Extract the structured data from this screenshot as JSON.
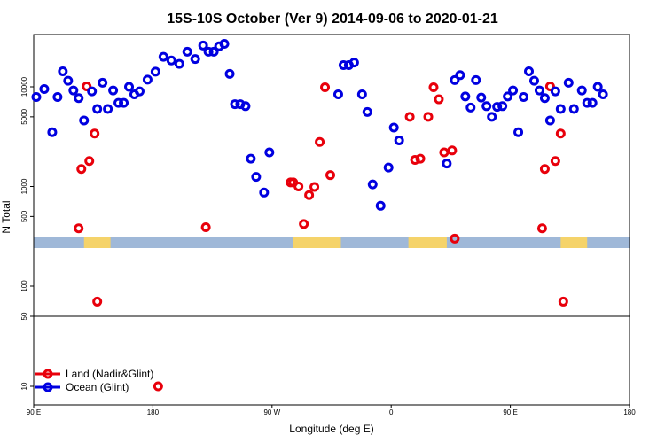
{
  "chart_data": {
    "type": "scatter",
    "title": "15S-10S October (Ver 9)   2014-09-06 to 2020-01-21",
    "xlabel": "Longitude (deg E)",
    "ylabel": "N Total",
    "x_ticks": [
      {
        "value": 90,
        "label": "90 E"
      },
      {
        "value": 180,
        "label": "180"
      },
      {
        "value": 270,
        "label": "90 W"
      },
      {
        "value": 360,
        "label": "0"
      },
      {
        "value": 450,
        "label": "90 E"
      },
      {
        "value": 540,
        "label": "180"
      }
    ],
    "xlim": [
      90,
      540
    ],
    "y_scale": "log",
    "y_upper_ticks": [
      {
        "value": 500,
        "label": "500"
      },
      {
        "value": 1000,
        "label": "1000"
      },
      {
        "value": 5000,
        "label": "5000"
      },
      {
        "value": 10000,
        "label": "10000"
      }
    ],
    "y_lower_ticks": [
      {
        "value": 50,
        "label": "50"
      },
      {
        "value": 100,
        "label": "100"
      },
      {
        "value": 50,
        "label": "50"
      },
      {
        "value": 10,
        "label": "10"
      }
    ],
    "land_mask": {
      "ocean_color": "#9fb8d8",
      "land_color": "#f5d36a",
      "land_segments": [
        [
          128,
          148
        ],
        [
          286,
          322
        ],
        [
          373,
          402
        ],
        [
          488,
          508
        ]
      ]
    },
    "legend_position": "bottom-left",
    "series": [
      {
        "name": "Land (Nadir&Glint)",
        "color": "#e8000b",
        "points": [
          [
            124,
            380
          ],
          [
            126,
            1500
          ],
          [
            130,
            10100
          ],
          [
            132,
            1800
          ],
          [
            136,
            3400
          ],
          [
            138,
            70
          ],
          [
            220,
            390
          ],
          [
            284,
            1100
          ],
          [
            286,
            1100
          ],
          [
            290,
            1000
          ],
          [
            294,
            420
          ],
          [
            298,
            820
          ],
          [
            302,
            990
          ],
          [
            306,
            2800
          ],
          [
            310,
            9900
          ],
          [
            314,
            1300
          ],
          [
            374,
            5000
          ],
          [
            378,
            1850
          ],
          [
            382,
            1900
          ],
          [
            388,
            5000
          ],
          [
            392,
            9900
          ],
          [
            396,
            7500
          ],
          [
            400,
            2200
          ],
          [
            406,
            2300
          ],
          [
            408,
            300
          ],
          [
            474,
            380
          ],
          [
            476,
            1500
          ],
          [
            480,
            10100
          ],
          [
            484,
            1800
          ],
          [
            488,
            3400
          ],
          [
            490,
            70
          ],
          [
            184,
            10
          ]
        ]
      },
      {
        "name": "Ocean (Glint)",
        "color": "#0000e0",
        "points": [
          [
            92,
            7900
          ],
          [
            98,
            9500
          ],
          [
            104,
            3500
          ],
          [
            108,
            7900
          ],
          [
            112,
            14300
          ],
          [
            116,
            11500
          ],
          [
            120,
            9200
          ],
          [
            124,
            7700
          ],
          [
            128,
            4600
          ],
          [
            134,
            9000
          ],
          [
            138,
            6000
          ],
          [
            142,
            11000
          ],
          [
            146,
            6000
          ],
          [
            150,
            9200
          ],
          [
            154,
            6900
          ],
          [
            158,
            6900
          ],
          [
            162,
            10000
          ],
          [
            166,
            8400
          ],
          [
            170,
            9000
          ],
          [
            176,
            11800
          ],
          [
            182,
            14200
          ],
          [
            188,
            20000
          ],
          [
            194,
            18400
          ],
          [
            200,
            17000
          ],
          [
            206,
            22500
          ],
          [
            212,
            19000
          ],
          [
            218,
            26000
          ],
          [
            222,
            22500
          ],
          [
            226,
            22500
          ],
          [
            230,
            25500
          ],
          [
            234,
            27000
          ],
          [
            238,
            13500
          ],
          [
            242,
            6700
          ],
          [
            246,
            6700
          ],
          [
            250,
            6400
          ],
          [
            254,
            1900
          ],
          [
            258,
            1250
          ],
          [
            264,
            870
          ],
          [
            268,
            2200
          ],
          [
            320,
            8400
          ],
          [
            324,
            16500
          ],
          [
            328,
            16500
          ],
          [
            332,
            17500
          ],
          [
            338,
            8400
          ],
          [
            342,
            5600
          ],
          [
            346,
            1050
          ],
          [
            352,
            640
          ],
          [
            358,
            1550
          ],
          [
            362,
            3900
          ],
          [
            366,
            2900
          ],
          [
            402,
            1700
          ],
          [
            408,
            11700
          ],
          [
            412,
            13100
          ],
          [
            416,
            8000
          ],
          [
            420,
            6200
          ],
          [
            424,
            11700
          ],
          [
            428,
            7800
          ],
          [
            432,
            6400
          ],
          [
            436,
            5000
          ],
          [
            440,
            6300
          ],
          [
            444,
            6400
          ],
          [
            448,
            8000
          ],
          [
            452,
            9200
          ],
          [
            456,
            3500
          ],
          [
            460,
            7900
          ],
          [
            464,
            14300
          ],
          [
            468,
            11500
          ],
          [
            472,
            9200
          ],
          [
            476,
            7700
          ],
          [
            480,
            4600
          ],
          [
            484,
            9000
          ],
          [
            488,
            6000
          ],
          [
            494,
            11000
          ],
          [
            498,
            6000
          ],
          [
            504,
            9200
          ],
          [
            508,
            6900
          ],
          [
            512,
            6900
          ],
          [
            516,
            10000
          ],
          [
            520,
            8400
          ]
        ]
      }
    ]
  }
}
